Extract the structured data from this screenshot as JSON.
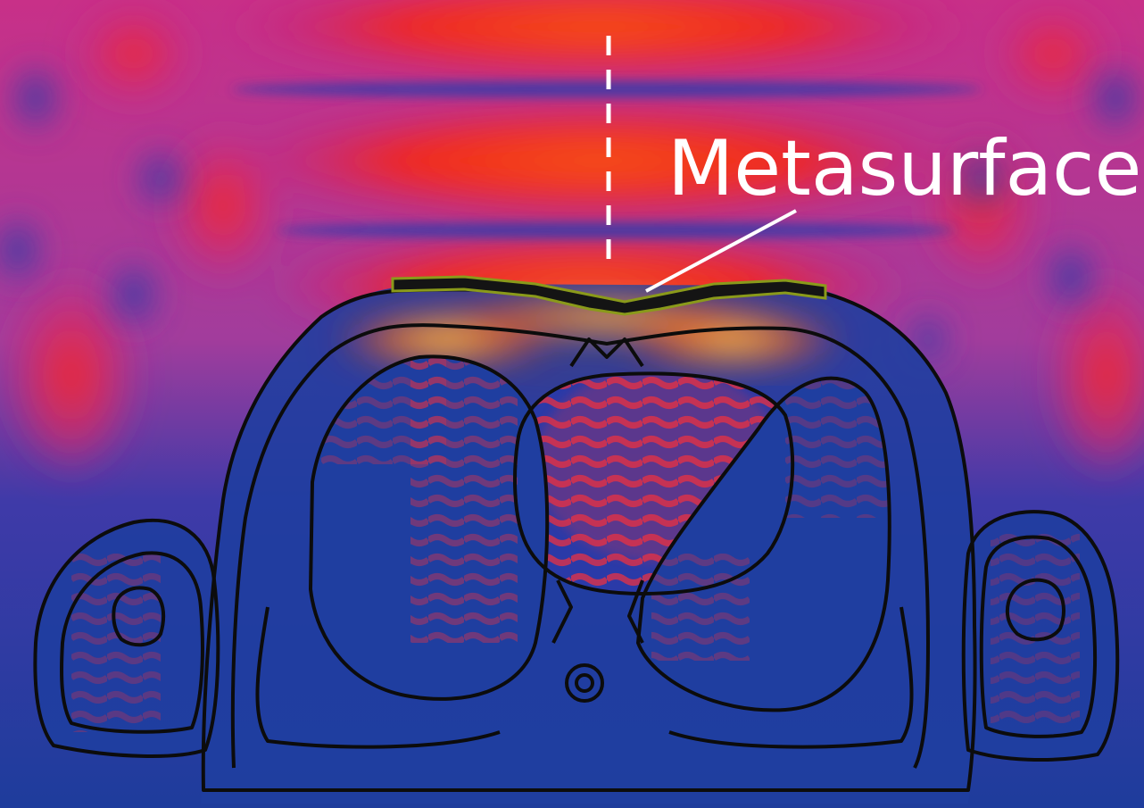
{
  "annotation": {
    "label": "Metasurface"
  },
  "colors": {
    "background_low": "#1e3c9c",
    "field_high": "#f6321e",
    "field_peak": "#ffd85a",
    "field_mid": "#c9308f",
    "outline": "#0c0c0c",
    "metasurface": "#8a9a1a",
    "annotation": "#ffffff"
  }
}
